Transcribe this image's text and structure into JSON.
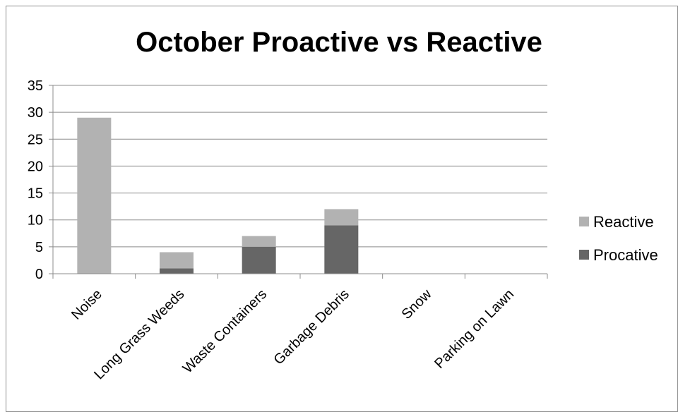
{
  "chart_data": {
    "type": "bar",
    "stacked": true,
    "title": "October Proactive vs Reactive",
    "xlabel": "",
    "ylabel": "",
    "ylim": [
      0,
      35
    ],
    "yticks": [
      0,
      5,
      10,
      15,
      20,
      25,
      30,
      35
    ],
    "grid": true,
    "legend_position": "right",
    "categories": [
      "Noise",
      "Long Grass Weeds",
      "Waste Containers",
      "Garbage Debris",
      "Snow",
      "Parking on Lawn"
    ],
    "series": [
      {
        "name": "Procative",
        "color": "#666666",
        "values": [
          0,
          1,
          5,
          9,
          0,
          0
        ]
      },
      {
        "name": "Reactive",
        "color": "#b2b2b2",
        "values": [
          29,
          3,
          2,
          3,
          0,
          0
        ]
      }
    ],
    "legend_order": [
      "Reactive",
      "Procative"
    ]
  }
}
